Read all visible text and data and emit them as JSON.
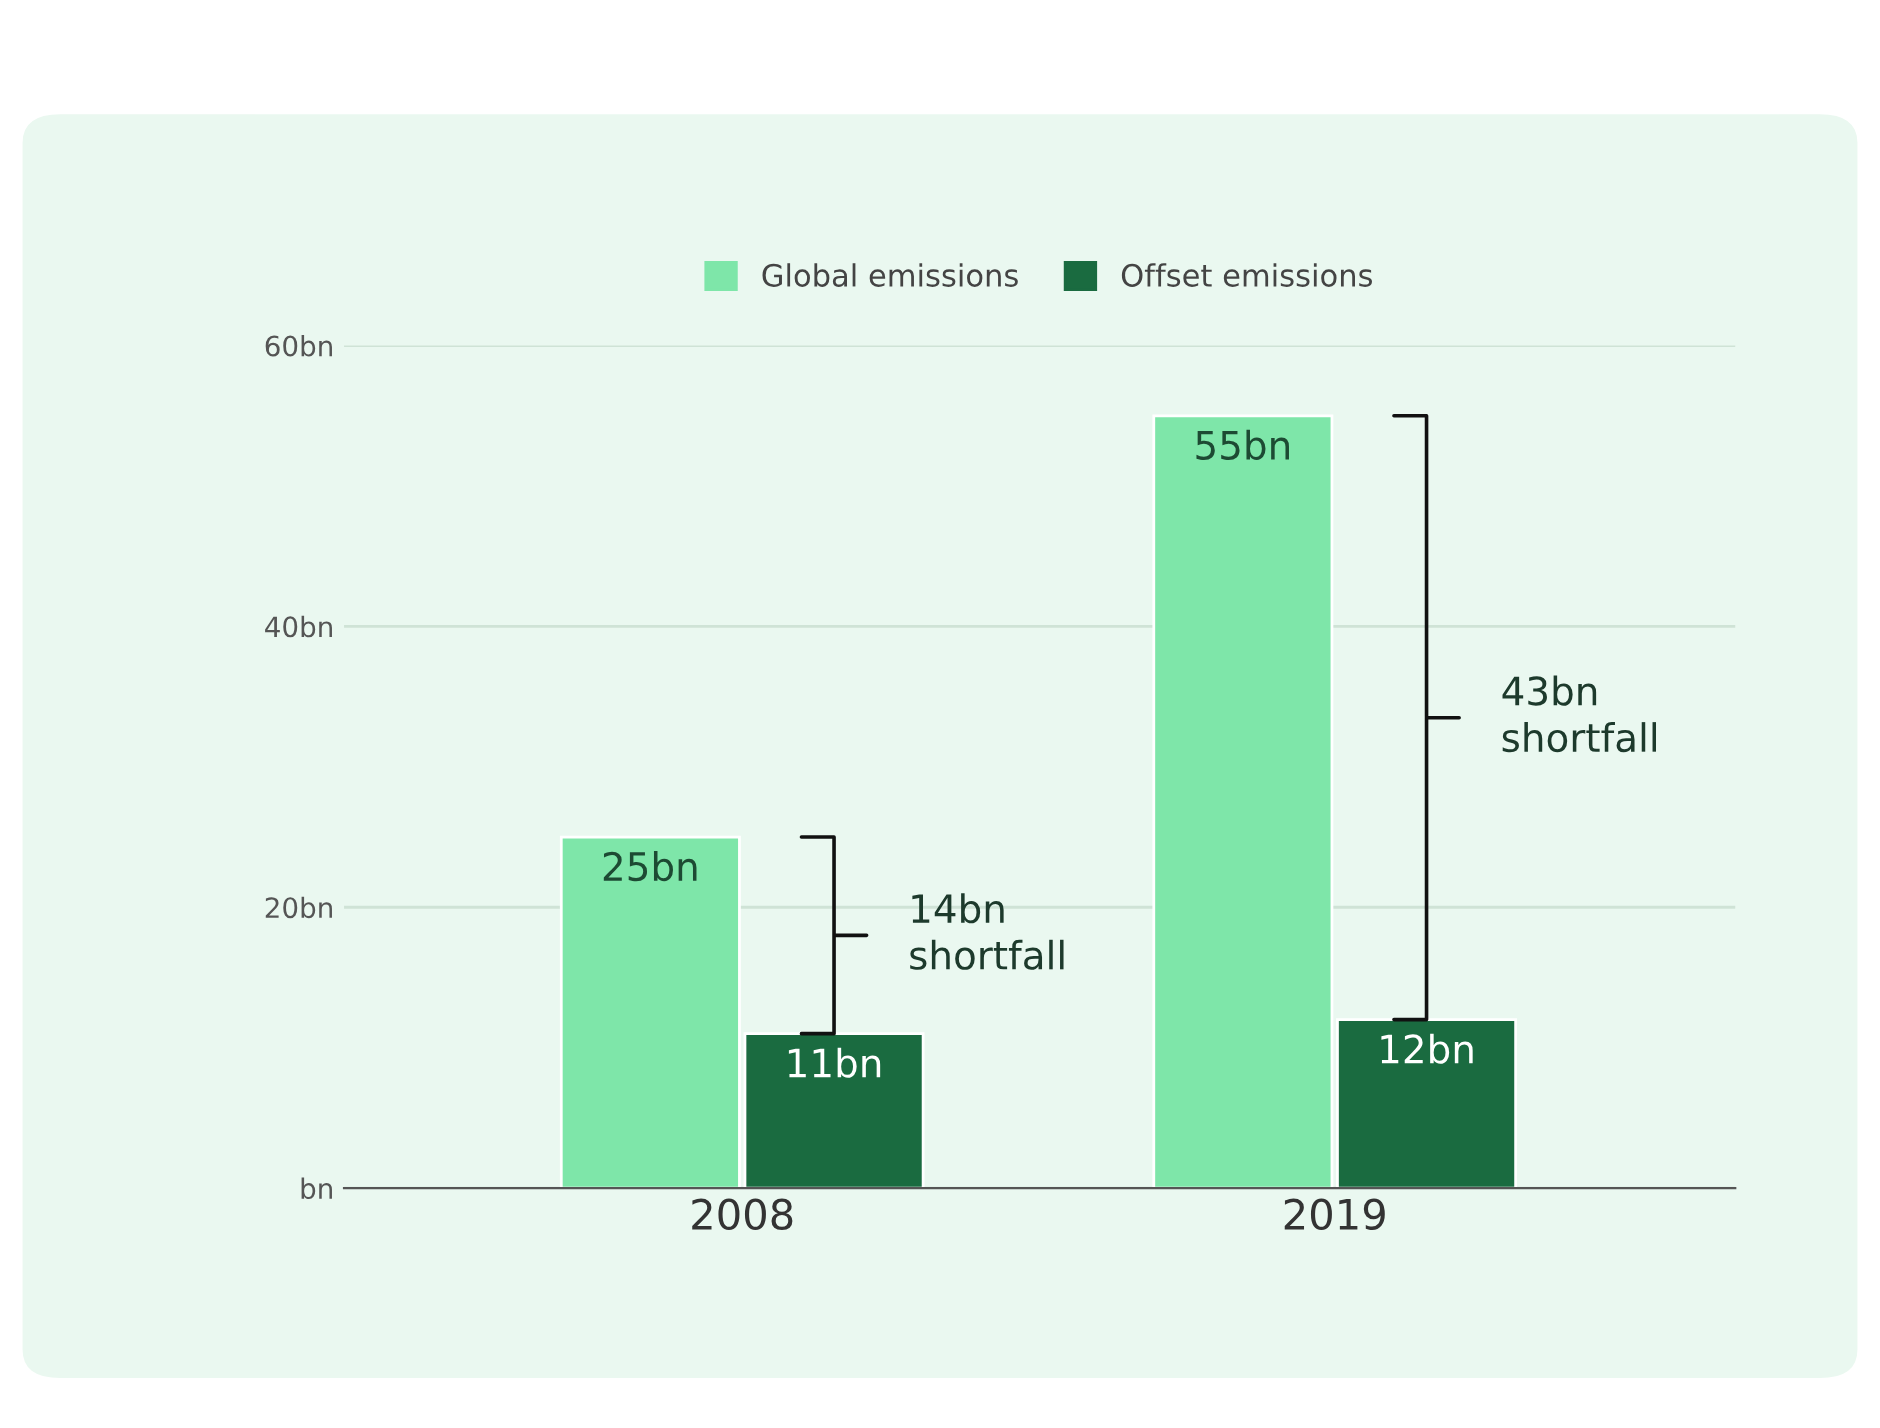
{
  "chart_data": {
    "type": "bar",
    "categories": [
      "2008",
      "2019"
    ],
    "series": [
      {
        "name": "Global emissions",
        "color": "#7ee6a9",
        "values": [
          25,
          55
        ],
        "value_labels": [
          "25bn",
          "55bn"
        ]
      },
      {
        "name": "Offset emissions",
        "color": "#1a6b40",
        "values": [
          11,
          12
        ],
        "value_labels": [
          "11bn",
          "12bn"
        ]
      }
    ],
    "ylim": [
      0,
      60
    ],
    "yticks": [
      {
        "value": 0,
        "label": "bn"
      },
      {
        "value": 20,
        "label": "20bn"
      },
      {
        "value": 40,
        "label": "40bn"
      },
      {
        "value": 60,
        "label": "60bn"
      }
    ],
    "annotations": [
      "14bn\nshortfall",
      "43bn\nshortfall"
    ],
    "grid": "y",
    "legend": "top"
  }
}
